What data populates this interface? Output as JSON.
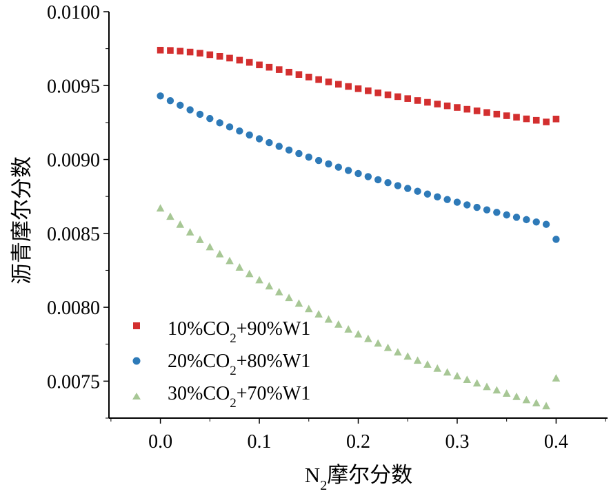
{
  "chart_data": {
    "type": "scatter",
    "title": "",
    "xlabel": {
      "main": "N",
      "sub": "2",
      "suffix": "摩尔分数"
    },
    "ylabel": "沥青摩尔分数",
    "xlim": [
      -0.052,
      0.452
    ],
    "ylim": [
      0.00725,
      0.01
    ],
    "xticks": [
      0.0,
      0.1,
      0.2,
      0.3,
      0.4
    ],
    "xtick_labels": [
      "0.0",
      "0.1",
      "0.2",
      "0.3",
      "0.4"
    ],
    "yticks": [
      0.0075,
      0.008,
      0.0085,
      0.009,
      0.0095,
      0.01
    ],
    "ytick_labels": [
      "0.0075",
      "0.0080",
      "0.0085",
      "0.0090",
      "0.0095",
      "0.0100"
    ],
    "legend_position": "lower-left",
    "x": [
      0.0,
      0.01,
      0.02,
      0.03,
      0.04,
      0.05,
      0.06,
      0.07,
      0.08,
      0.09,
      0.1,
      0.11,
      0.12,
      0.13,
      0.14,
      0.15,
      0.16,
      0.17,
      0.18,
      0.19,
      0.2,
      0.21,
      0.22,
      0.23,
      0.24,
      0.25,
      0.26,
      0.27,
      0.28,
      0.29,
      0.3,
      0.31,
      0.32,
      0.33,
      0.34,
      0.35,
      0.36,
      0.37,
      0.38,
      0.39,
      0.4
    ],
    "series": [
      {
        "name": "10%CO2+90%W1",
        "legend": {
          "prefix": "10%CO",
          "sub": "2",
          "suffix": "+90%W1"
        },
        "marker": "square",
        "color": "#d32f2f",
        "values": [
          0.00974,
          0.009738,
          0.009733,
          0.009727,
          0.009719,
          0.009709,
          0.009698,
          0.009686,
          0.009672,
          0.009657,
          0.00964,
          0.009624,
          0.009608,
          0.009591,
          0.009575,
          0.009558,
          0.009541,
          0.009525,
          0.009509,
          0.009494,
          0.009479,
          0.009465,
          0.009451,
          0.009438,
          0.009425,
          0.009412,
          0.009399,
          0.009387,
          0.009375,
          0.009363,
          0.009352,
          0.00934,
          0.009329,
          0.009318,
          0.009307,
          0.009296,
          0.009286,
          0.009275,
          0.009265,
          0.009254,
          0.009274
        ]
      },
      {
        "name": "20%CO2+80%W1",
        "legend": {
          "prefix": "20%CO",
          "sub": "2",
          "suffix": "+80%W1"
        },
        "marker": "circle",
        "color": "#2e7ab8",
        "values": [
          0.00943,
          0.009398,
          0.009367,
          0.009336,
          0.009306,
          0.009277,
          0.009248,
          0.00922,
          0.009193,
          0.009166,
          0.00914,
          0.009114,
          0.009089,
          0.009064,
          0.00904,
          0.009016,
          0.008993,
          0.00897,
          0.008948,
          0.008926,
          0.008905,
          0.008884,
          0.008863,
          0.008843,
          0.008823,
          0.008804,
          0.008785,
          0.008766,
          0.008747,
          0.008729,
          0.008711,
          0.008693,
          0.008676,
          0.008659,
          0.008642,
          0.008625,
          0.008609,
          0.008593,
          0.008577,
          0.008561,
          0.00846
        ]
      },
      {
        "name": "30%CO2+70%W1",
        "legend": {
          "prefix": "30%CO",
          "sub": "2",
          "suffix": "+70%W1"
        },
        "marker": "triangle",
        "color": "#a7c795",
        "values": [
          0.00867,
          0.008614,
          0.00856,
          0.008508,
          0.008457,
          0.008408,
          0.00836,
          0.008314,
          0.00827,
          0.008226,
          0.008184,
          0.008143,
          0.008103,
          0.008064,
          0.008026,
          0.007989,
          0.007953,
          0.007918,
          0.007884,
          0.007851,
          0.007818,
          0.007787,
          0.007756,
          0.007726,
          0.007696,
          0.007668,
          0.00764,
          0.007613,
          0.007586,
          0.00756,
          0.007535,
          0.00751,
          0.007486,
          0.007462,
          0.007439,
          0.007417,
          0.007395,
          0.007373,
          0.007352,
          0.007332,
          0.00752
        ]
      }
    ]
  }
}
